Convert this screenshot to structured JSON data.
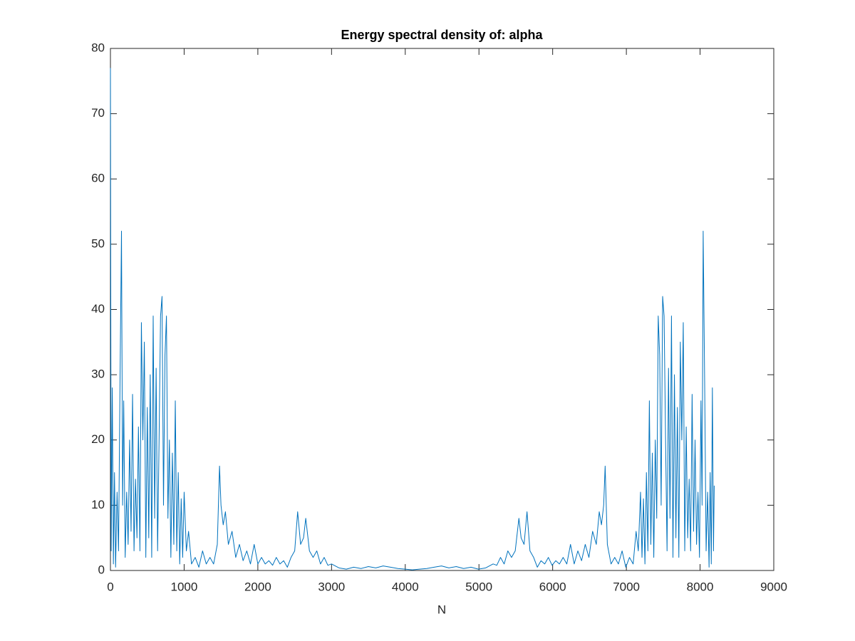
{
  "chart_data": {
    "type": "line",
    "title": "Energy spectral density of: alpha",
    "x_label": "N",
    "x": [
      0,
      10,
      25,
      40,
      55,
      70,
      90,
      110,
      130,
      150,
      165,
      180,
      200,
      220,
      240,
      260,
      280,
      300,
      320,
      340,
      360,
      380,
      400,
      420,
      440,
      460,
      480,
      500,
      520,
      540,
      560,
      580,
      600,
      620,
      640,
      660,
      680,
      700,
      720,
      740,
      760,
      780,
      800,
      820,
      840,
      860,
      880,
      900,
      920,
      940,
      960,
      980,
      1000,
      1030,
      1060,
      1100,
      1150,
      1200,
      1250,
      1300,
      1350,
      1400,
      1450,
      1480,
      1500,
      1530,
      1560,
      1600,
      1650,
      1700,
      1750,
      1800,
      1850,
      1900,
      1950,
      2000,
      2050,
      2100,
      2150,
      2200,
      2250,
      2300,
      2350,
      2400,
      2450,
      2500,
      2540,
      2580,
      2620,
      2650,
      2700,
      2750,
      2800,
      2850,
      2900,
      2950,
      3000,
      3100,
      3200,
      3300,
      3400,
      3500,
      3600,
      3700,
      3800,
      3900,
      4000,
      4096,
      4192,
      4292,
      4392,
      4492,
      4592,
      4692,
      4792,
      4892,
      4992,
      5092,
      5192,
      5242,
      5292,
      5342,
      5392,
      5442,
      5492,
      5542,
      5572,
      5612,
      5652,
      5692,
      5742,
      5792,
      5842,
      5892,
      5942,
      5992,
      6042,
      6092,
      6142,
      6192,
      6242,
      6292,
      6342,
      6392,
      6442,
      6492,
      6542,
      6592,
      6632,
      6662,
      6692,
      6712,
      6742,
      6792,
      6842,
      6892,
      6942,
      6992,
      7042,
      7092,
      7132,
      7162,
      7192,
      7212,
      7232,
      7252,
      7272,
      7292,
      7312,
      7332,
      7352,
      7372,
      7392,
      7412,
      7432,
      7452,
      7472,
      7492,
      7512,
      7532,
      7552,
      7572,
      7592,
      7612,
      7632,
      7652,
      7672,
      7692,
      7712,
      7732,
      7752,
      7772,
      7792,
      7812,
      7832,
      7852,
      7872,
      7892,
      7912,
      7932,
      7952,
      7972,
      7992,
      8012,
      8027,
      8042,
      8062,
      8082,
      8102,
      8122,
      8137,
      8152,
      8167,
      8182,
      8192
    ],
    "values": [
      77,
      3,
      28,
      1,
      15,
      0.5,
      12,
      3,
      29,
      52,
      10,
      26,
      2,
      12,
      4,
      20,
      6,
      27,
      3,
      14,
      5,
      22,
      3,
      38,
      20,
      35,
      2,
      25,
      5,
      30,
      2,
      39,
      8,
      31,
      3,
      20,
      39,
      42,
      10,
      33,
      39,
      8,
      20,
      2,
      18,
      4,
      26,
      3,
      15,
      1,
      11,
      2,
      12,
      3,
      6,
      1,
      2,
      0.5,
      3,
      1,
      2,
      1,
      4,
      16,
      10,
      7,
      9,
      4,
      6,
      2,
      4,
      1.5,
      3,
      1,
      4,
      1,
      2,
      1,
      1.5,
      0.8,
      2,
      1,
      1.5,
      0.5,
      2,
      3,
      9,
      4,
      5,
      8,
      3,
      2,
      3,
      1,
      2,
      0.8,
      1,
      0.4,
      0.2,
      0.5,
      0.3,
      0.6,
      0.4,
      0.7,
      0.5,
      0.3,
      0.2,
      0.1,
      0.2,
      0.3,
      0.5,
      0.7,
      0.4,
      0.6,
      0.3,
      0.5,
      0.2,
      0.4,
      1,
      0.8,
      2,
      1,
      3,
      2,
      3,
      8,
      5,
      4,
      9,
      3,
      2,
      0.5,
      1.5,
      1,
      2,
      0.8,
      1.5,
      1,
      2,
      1,
      4,
      1,
      3,
      1.5,
      4,
      2,
      6,
      4,
      9,
      7,
      10,
      16,
      4,
      1,
      2,
      1,
      3,
      0.5,
      2,
      1,
      6,
      3,
      12,
      2,
      11,
      1,
      15,
      3,
      26,
      4,
      18,
      2,
      20,
      8,
      39,
      33,
      10,
      42,
      39,
      20,
      3,
      31,
      8,
      39,
      2,
      30,
      5,
      25,
      2,
      35,
      20,
      38,
      3,
      22,
      5,
      14,
      3,
      27,
      6,
      20,
      4,
      12,
      2,
      26,
      10,
      52,
      29,
      3,
      12,
      0.5,
      15,
      1,
      28,
      3,
      13
    ],
    "color": "#0072bd",
    "xlim": [
      0,
      9000
    ],
    "xticks": [
      0,
      1000,
      2000,
      3000,
      4000,
      5000,
      6000,
      7000,
      8000,
      9000
    ],
    "ylim": [
      0,
      80
    ],
    "yticks": [
      0,
      10,
      20,
      30,
      40,
      50,
      60,
      70,
      80
    ],
    "grid": false
  }
}
